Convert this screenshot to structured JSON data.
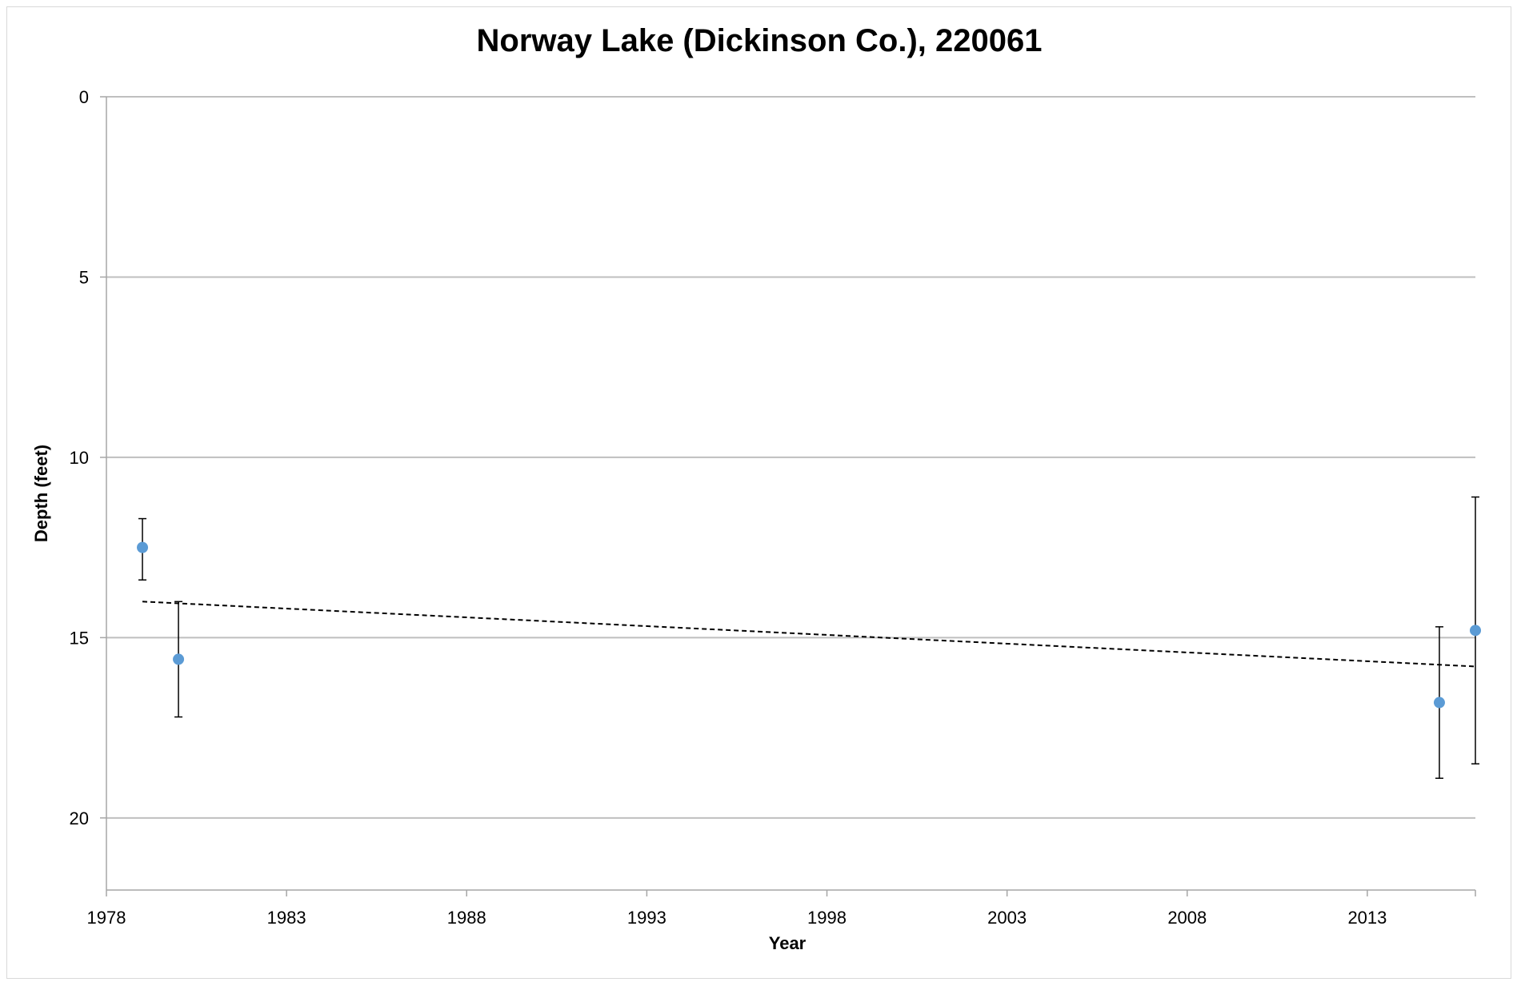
{
  "chart_data": {
    "type": "scatter",
    "title": "Norway Lake (Dickinson Co.), 220061",
    "xlabel": "Year",
    "ylabel": "Depth (feet)",
    "xlim": [
      1978,
      2016
    ],
    "ylim": [
      0,
      22
    ],
    "y_inverted": true,
    "x_ticks": [
      1978,
      1983,
      1988,
      1993,
      1998,
      2003,
      2008,
      2013
    ],
    "y_ticks": [
      0,
      5,
      10,
      15,
      20
    ],
    "grid": "horizontal",
    "legend": "none",
    "series": [
      {
        "x": [
          1979,
          1980,
          2015,
          2016
        ],
        "y": [
          12.5,
          15.6,
          16.8,
          14.8
        ],
        "error_low": [
          11.7,
          14.0,
          14.7,
          11.1
        ],
        "error_high": [
          13.4,
          17.2,
          18.9,
          18.5
        ],
        "color": "#5b9bd5"
      }
    ],
    "trendline": {
      "style": "dashed",
      "color": "#000000",
      "x": [
        1979,
        2016
      ],
      "y": [
        14.0,
        15.8
      ]
    }
  }
}
